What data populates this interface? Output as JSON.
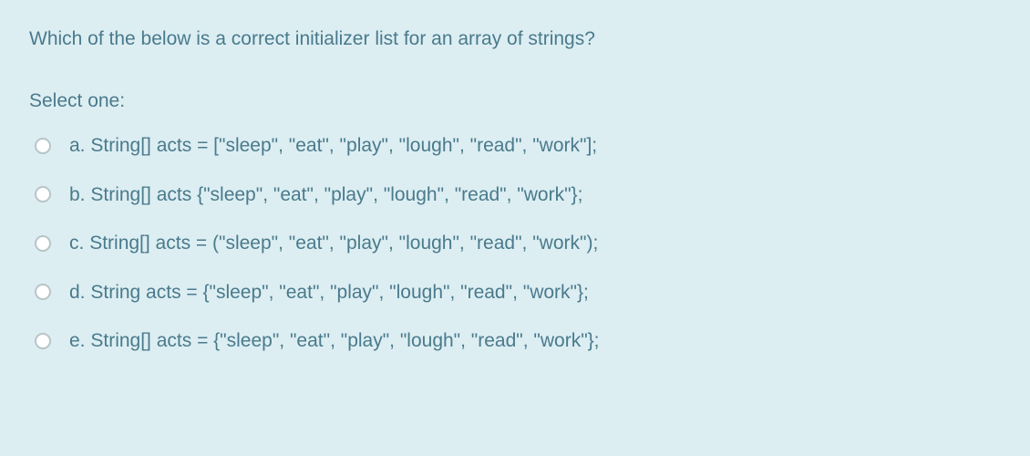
{
  "question": {
    "text": "Which of the below is a correct initializer list for an array of strings?",
    "prompt": "Select one:",
    "options": [
      {
        "letter": "a.",
        "code": "String[] acts = [\"sleep\", \"eat\", \"play\", \"lough\", \"read\", \"work\"];"
      },
      {
        "letter": "b.",
        "code": "String[] acts {\"sleep\", \"eat\", \"play\", \"lough\", \"read\", \"work\"};"
      },
      {
        "letter": "c.",
        "code": "String[] acts = (\"sleep\", \"eat\", \"play\", \"lough\", \"read\", \"work\");"
      },
      {
        "letter": "d.",
        "code": "String acts = {\"sleep\", \"eat\", \"play\", \"lough\", \"read\", \"work\"};"
      },
      {
        "letter": "e.",
        "code": "String[] acts = {\"sleep\", \"eat\", \"play\", \"lough\", \"read\", \"work\"};"
      }
    ]
  },
  "colors": {
    "background": "#dceef2",
    "text": "#4a7a8c",
    "radio_border": "#b8c4c8",
    "radio_fill": "#ffffff"
  }
}
